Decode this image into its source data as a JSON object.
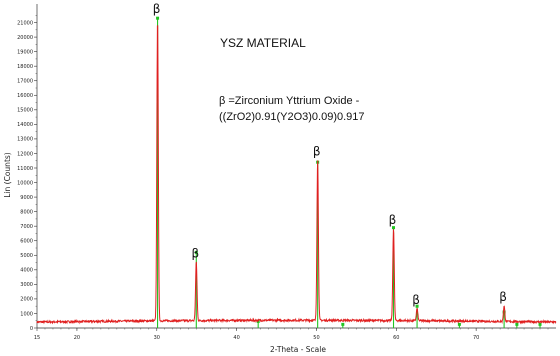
{
  "chart_data": {
    "type": "line",
    "title": "YSZ MATERIAL",
    "annotation_line1": "β =Zirconium Yttrium Oxide -",
    "annotation_line2": "((ZrO2)0.91(Y2O3)0.09)0.917",
    "xlabel": "2-Theta - Scale",
    "ylabel": "Lin (Counts)",
    "xlim": [
      15,
      80
    ],
    "ylim": [
      0,
      22000
    ],
    "x_ticks": [
      15,
      20,
      30,
      40,
      50,
      60,
      70
    ],
    "y_ticks": [
      0,
      1000,
      2000,
      3000,
      4000,
      5000,
      6000,
      7000,
      8000,
      9000,
      10000,
      11000,
      12000,
      13000,
      14000,
      15000,
      16000,
      17000,
      18000,
      19000,
      20000,
      21000
    ],
    "background_level": 450,
    "series": [
      {
        "color": "#e02020",
        "peaks": [
          {
            "x": 30.1,
            "y": 21300,
            "label": "β"
          },
          {
            "x": 34.95,
            "y": 4500,
            "label": "β"
          },
          {
            "x": 50.15,
            "y": 11500,
            "label": "β"
          },
          {
            "x": 59.65,
            "y": 6800,
            "label": "β"
          },
          {
            "x": 62.6,
            "y": 1300,
            "label": "β"
          },
          {
            "x": 73.5,
            "y": 1500,
            "label": "β"
          }
        ]
      }
    ],
    "reference_color": "#22c422",
    "reference_lines": [
      {
        "x": 30.1,
        "y": 21300
      },
      {
        "x": 34.95,
        "y": 5200
      },
      {
        "x": 42.7,
        "y": 450
      },
      {
        "x": 50.15,
        "y": 11400
      },
      {
        "x": 53.3,
        "y": 250
      },
      {
        "x": 59.65,
        "y": 6900
      },
      {
        "x": 62.6,
        "y": 1500
      },
      {
        "x": 67.9,
        "y": 250
      },
      {
        "x": 73.5,
        "y": 1100
      },
      {
        "x": 75.1,
        "y": 250
      },
      {
        "x": 78.0,
        "y": 250
      }
    ]
  }
}
